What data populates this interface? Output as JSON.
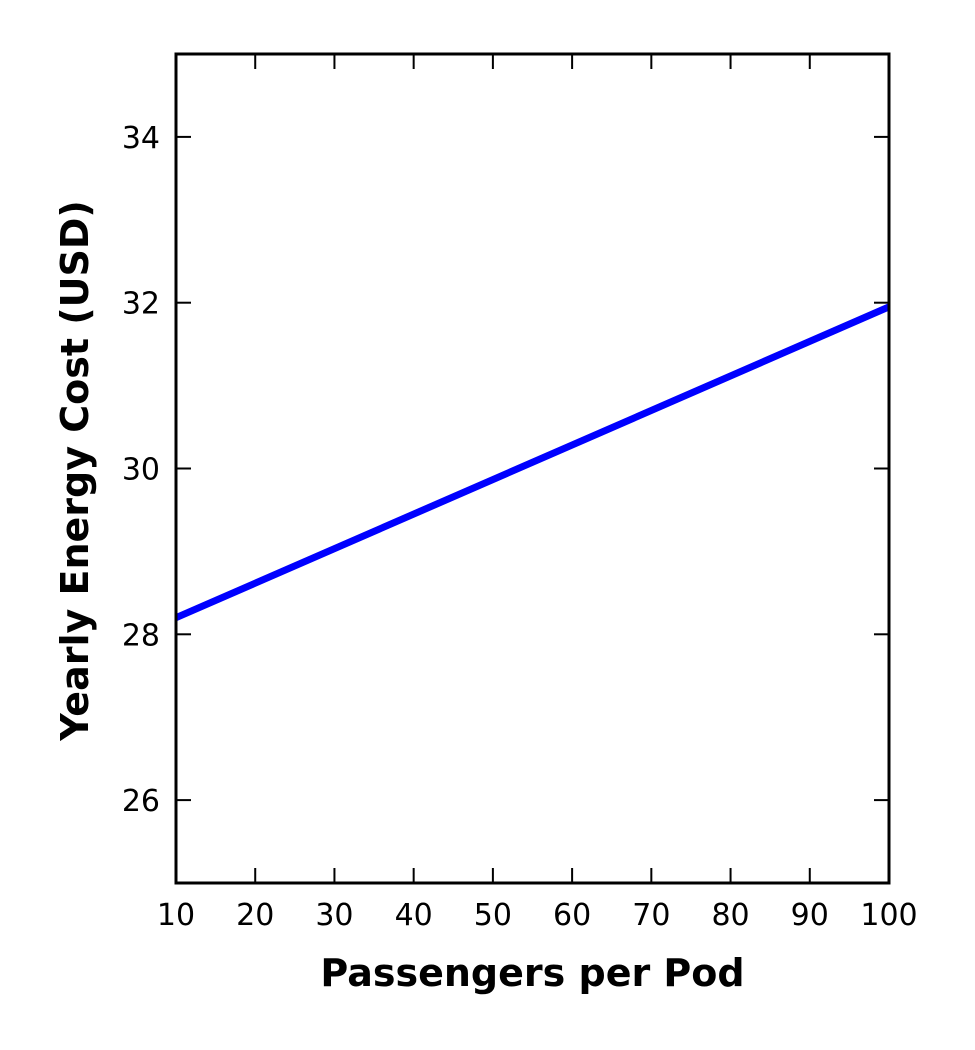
{
  "chart_data": {
    "type": "line",
    "title": "",
    "xlabel": "Passengers per Pod",
    "ylabel": "Yearly Energy Cost (USD)",
    "xlim": [
      10,
      100
    ],
    "ylim": [
      25,
      35
    ],
    "xticks": [
      10,
      20,
      30,
      40,
      50,
      60,
      70,
      80,
      90,
      100
    ],
    "xtick_labels": [
      "10",
      "20",
      "30",
      "40",
      "50",
      "60",
      "70",
      "80",
      "90",
      "100"
    ],
    "yticks": [
      26,
      28,
      30,
      32,
      34
    ],
    "ytick_labels": [
      "26",
      "28",
      "30",
      "32",
      "34"
    ],
    "grid": false,
    "series": [
      {
        "color": "#0000ff",
        "x": [
          10,
          100
        ],
        "y": [
          28.2,
          31.95
        ]
      }
    ]
  }
}
